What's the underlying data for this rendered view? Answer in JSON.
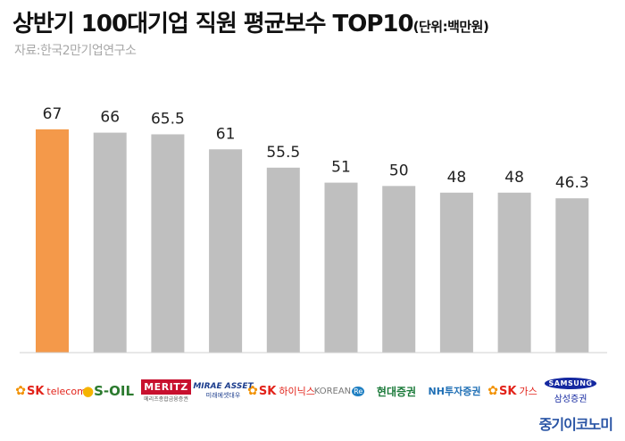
{
  "header": {
    "title": "상반기 100대기업 직원 평균보수 TOP10",
    "unit": "(단위:백만원)",
    "source": "자료:한국2만기업연구소"
  },
  "chart_data": {
    "type": "bar",
    "title": "상반기 100대기업 직원 평균보수 TOP10",
    "unit": "(단위:백만원)",
    "categories": [
      "SK텔레콤",
      "S-OIL",
      "메리츠종금증권",
      "미래에셋대우",
      "SK하이닉스",
      "코리안리",
      "현대증권",
      "NH투자증권",
      "SK가스",
      "삼성증권"
    ],
    "values": [
      67,
      66,
      65.5,
      61,
      55.5,
      51,
      50,
      48,
      48,
      46.3
    ],
    "value_labels": [
      "67",
      "66",
      "65.5",
      "61",
      "55.5",
      "51",
      "50",
      "48",
      "48",
      "46.3"
    ],
    "ylim": [
      0,
      75
    ],
    "highlight_index": 0,
    "highlight_color": "#f4994a",
    "bar_color": "#bfbfbf",
    "grid": false
  },
  "logos": [
    {
      "name": "sk-telecom",
      "main": "SK",
      "sub": "telecom"
    },
    {
      "name": "s-oil",
      "main": "S-OIL"
    },
    {
      "name": "meritz",
      "main": "MERITZ",
      "sub": "메리츠종합금융증권"
    },
    {
      "name": "mirae-asset",
      "main": "MIRAE ASSET",
      "sub": "미래에셋대우"
    },
    {
      "name": "sk-hynix",
      "main": "SK",
      "sub": "하이닉스"
    },
    {
      "name": "korean-re",
      "main": "KOREAN",
      "sub": "Re"
    },
    {
      "name": "hyundai",
      "main": "현대증권"
    },
    {
      "name": "nh",
      "main": "NH투자증권"
    },
    {
      "name": "sk-gas",
      "main": "SK",
      "sub": "가스"
    },
    {
      "name": "samsung",
      "main": "SAMSUNG",
      "sub": "삼성증권"
    }
  ],
  "brand": "중기이코노미"
}
